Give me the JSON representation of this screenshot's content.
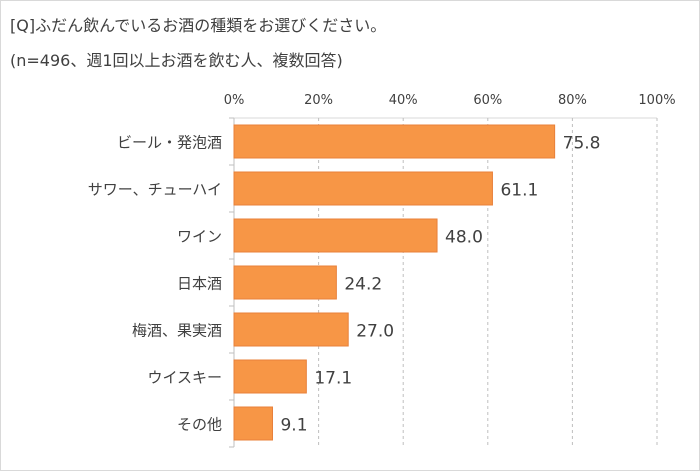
{
  "chart_data": {
    "type": "bar",
    "orientation": "horizontal",
    "title": "[Q]ふだん飲んでいるお酒の種類をお選びください。",
    "subtitle": "(n=496、週1回以上お酒を飲む人、複数回答)",
    "categories": [
      "ビール・発泡酒",
      "サワー、チューハイ",
      "ワイン",
      "日本酒",
      "梅酒、果実酒",
      "ウイスキー",
      "その他"
    ],
    "values": [
      75.8,
      61.1,
      48.0,
      24.2,
      27.0,
      17.1,
      9.1
    ],
    "value_labels": [
      "75.8",
      "61.1",
      "48.0",
      "24.2",
      "27.0",
      "17.1",
      "9.1"
    ],
    "xlim": [
      0,
      100
    ],
    "xticks": [
      "0%",
      "20%",
      "40%",
      "60%",
      "80%",
      "100%"
    ],
    "xaxis_position": "top",
    "grid": true,
    "legend": "none",
    "colors": {
      "bar": "#F79646",
      "bar_border": "#E8803A",
      "grid": "#bfbfbf",
      "text": "#404040"
    }
  }
}
